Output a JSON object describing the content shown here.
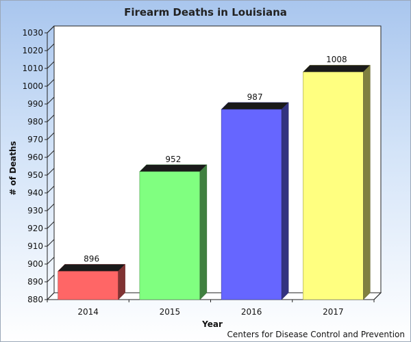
{
  "chart_data": {
    "type": "bar",
    "title": "Firearm Deaths in Louisiana",
    "xlabel": "Year",
    "ylabel": "# of Deaths",
    "categories": [
      "2014",
      "2015",
      "2016",
      "2017"
    ],
    "values": [
      896,
      952,
      987,
      1008
    ],
    "ylim": [
      880,
      1030
    ],
    "ytick_step": 10,
    "colors": [
      "#ff6666",
      "#80ff80",
      "#6666ff",
      "#ffff80"
    ],
    "source": "Centers for Disease Control and Prevention",
    "grid": false,
    "legend": "none"
  }
}
